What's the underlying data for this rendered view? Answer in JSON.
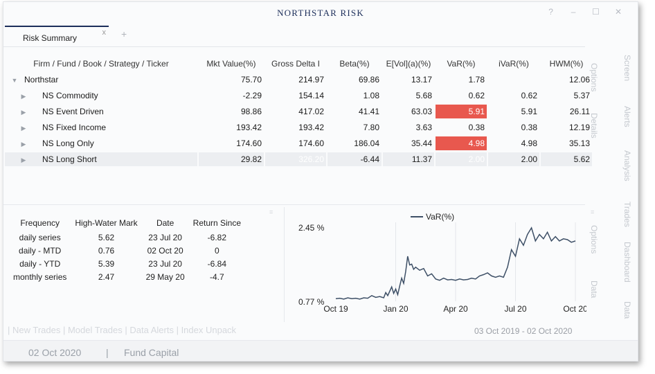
{
  "app": {
    "title": "NORTHSTAR RISK"
  },
  "window_controls": {
    "help": "?",
    "minimize": "–",
    "maximize": "☐",
    "close": "✕"
  },
  "tabs": [
    {
      "label": "Risk Summary",
      "close": "x"
    }
  ],
  "tab_add": "+",
  "grid": {
    "columns": [
      "Firm / Fund / Book / Strategy / Ticker",
      "Mkt Value(%)",
      "Gross Delta I",
      "Beta(%)",
      "E[Vol](a)(%)",
      "VaR(%)",
      "iVaR(%)",
      "HWM(%)"
    ],
    "root": {
      "caret": "▼",
      "name": "Northstar",
      "mkt": "75.70",
      "gross": "214.97",
      "beta": "69.86",
      "evol": "13.17",
      "var": "1.78",
      "ivar": "",
      "hwm": "12.06"
    },
    "rows": [
      {
        "caret": "▶",
        "name": "NS Commodity",
        "mkt": "-2.29",
        "gross": "154.14",
        "beta": "1.08",
        "evol": "5.68",
        "var": "0.62",
        "ivar": "0.62",
        "hwm": "5.37"
      },
      {
        "caret": "▶",
        "name": "NS Event Driven",
        "mkt": "98.86",
        "gross": "417.02",
        "beta": "41.41",
        "evol": "63.03",
        "var": "5.91",
        "ivar": "5.91",
        "hwm": "26.11"
      },
      {
        "caret": "▶",
        "name": "NS Fixed Income",
        "mkt": "193.42",
        "gross": "193.42",
        "beta": "7.80",
        "evol": "3.63",
        "var": "0.38",
        "ivar": "0.38",
        "hwm": "12.19"
      },
      {
        "caret": "▶",
        "name": "NS Long Only",
        "mkt": "174.60",
        "gross": "174.60",
        "beta": "186.04",
        "evol": "35.44",
        "var": "4.98",
        "ivar": "4.98",
        "hwm": "35.13"
      },
      {
        "caret": "▶",
        "name": "NS Long Short",
        "mkt": "29.82",
        "gross": "326.20",
        "beta": "-6.44",
        "evol": "11.37",
        "var": "2.00",
        "ivar": "2.00",
        "hwm": "5.62"
      }
    ]
  },
  "side_tabs": {
    "options_top": "Options",
    "details": "Details",
    "options_bottom": "Options",
    "data_inner": "Data",
    "screen": "Screen",
    "alerts": "Alerts",
    "analysis": "Analysis",
    "trades": "Trades",
    "dashboard": "Dashboard",
    "data_outer": "Data"
  },
  "hwm_table": {
    "columns": [
      "Frequency",
      "High-Water Mark",
      "Date",
      "Return Since"
    ],
    "rows": [
      [
        "daily series",
        "5.62",
        "23 Jul 20",
        "-6.82"
      ],
      [
        "daily - MTD",
        "0.76",
        "02 Oct 20",
        "0"
      ],
      [
        "daily - YTD",
        "5.39",
        "23 Jul 20",
        "-6.84"
      ],
      [
        "monthly series",
        "2.47",
        "29 May 20",
        "-4.7"
      ]
    ]
  },
  "chart_data": {
    "type": "line",
    "title": "",
    "legend": "VaR(%)",
    "xlabel": "",
    "ylabel": "",
    "ylim": [
      0.77,
      2.45
    ],
    "ytick_labels": [
      "2.45 %",
      "0.77 %"
    ],
    "x_tick_labels": [
      "Oct 19",
      "Jan 20",
      "Apr 20",
      "Jul 20",
      "Oct 20"
    ],
    "series": [
      {
        "name": "VaR(%)",
        "x": [
          0,
          0.2,
          0.4,
          0.6,
          0.8,
          1,
          1.2,
          1.4,
          1.6,
          1.8,
          2,
          2.2,
          2.4,
          2.5,
          2.6,
          2.7,
          2.8,
          2.9,
          3,
          3.1,
          3.2,
          3.3,
          3.4,
          3.5,
          3.6,
          3.7,
          3.8,
          3.9,
          4,
          4.2,
          4.4,
          4.6,
          4.8,
          5,
          5.2,
          5.4,
          5.6,
          5.8,
          6,
          6.2,
          6.4,
          6.6,
          6.8,
          7,
          7.2,
          7.4,
          7.6,
          7.8,
          8,
          8.2,
          8.4,
          8.6,
          8.8,
          9,
          9.2,
          9.4,
          9.6,
          9.8,
          10,
          10.2,
          10.4,
          10.6,
          10.8,
          11,
          11.2,
          11.4,
          11.6,
          11.8,
          12
        ],
        "values": [
          0.83,
          0.84,
          0.82,
          0.85,
          0.83,
          0.84,
          0.82,
          0.85,
          0.84,
          0.9,
          0.86,
          0.88,
          0.85,
          0.97,
          0.9,
          1.0,
          1.1,
          0.95,
          1.05,
          0.92,
          1.12,
          1.3,
          1.18,
          1.45,
          1.8,
          1.6,
          1.62,
          1.5,
          1.55,
          1.48,
          1.52,
          1.35,
          1.4,
          1.28,
          1.25,
          1.3,
          1.26,
          1.27,
          1.25,
          1.28,
          1.26,
          1.27,
          1.3,
          1.28,
          1.35,
          1.38,
          1.42,
          1.35,
          1.32,
          1.35,
          1.32,
          1.55,
          1.95,
          1.8,
          2.2,
          2.05,
          2.3,
          2.5,
          2.15,
          2.3,
          2.2,
          2.35,
          2.15,
          2.25,
          2.15,
          2.2,
          2.18,
          2.12,
          2.15
        ]
      }
    ]
  },
  "bottom_links": [
    "| New Trades",
    "| Model Trades",
    "| Data Alerts",
    "| Index Unpack"
  ],
  "date_range": "03 Oct 2019 - 02 Oct 2020",
  "status": {
    "date": "02 Oct 2020",
    "sep": "|",
    "label": "Fund Capital"
  }
}
